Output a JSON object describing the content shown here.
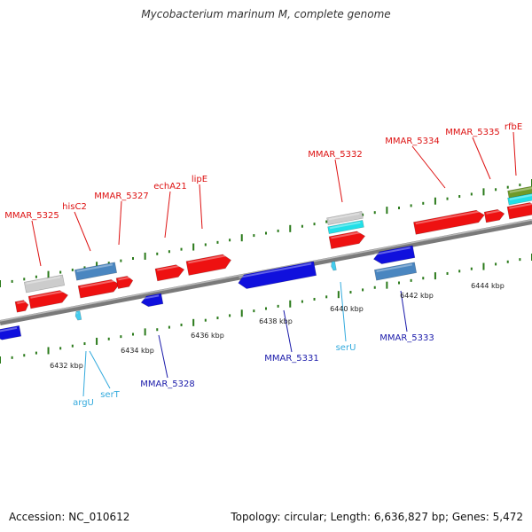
{
  "title": "Mycobacterium marinum M, complete genome",
  "footer": {
    "accession": "Accession: NC_010612",
    "topology": "Topology: circular; Length: 6,636,827 bp; Genes: 5,472"
  },
  "colors": {
    "forward_gene": "#ee1111",
    "reverse_gene": "#1010dd",
    "rna": "#44ccee",
    "pseudo": "#cccccc",
    "steel": "#4a86c0",
    "cyan": "#22e0e8",
    "olive": "#6f9a2a",
    "backbone": "#808080",
    "label_forward": "#dd1111",
    "label_reverse": "#1a1aaa",
    "label_rna": "#33aadd",
    "tick": "#2a7a1a"
  },
  "scale_labels": [
    "6432 kbp",
    "6434 kbp",
    "6436 kbp",
    "6438 kbp",
    "6440 kbp",
    "6442 kbp",
    "6444 kbp"
  ],
  "gene_labels": {
    "forward": [
      "MMAR_5325",
      "hisC2",
      "MMAR_5327",
      "echA21",
      "lipE",
      "MMAR_5332",
      "MMAR_5334",
      "MMAR_5335",
      "rfbE"
    ],
    "reverse": [
      "MMAR_5328",
      "MMAR_5331",
      "MMAR_5333"
    ],
    "rna": [
      "argU",
      "serT",
      "serU"
    ]
  }
}
